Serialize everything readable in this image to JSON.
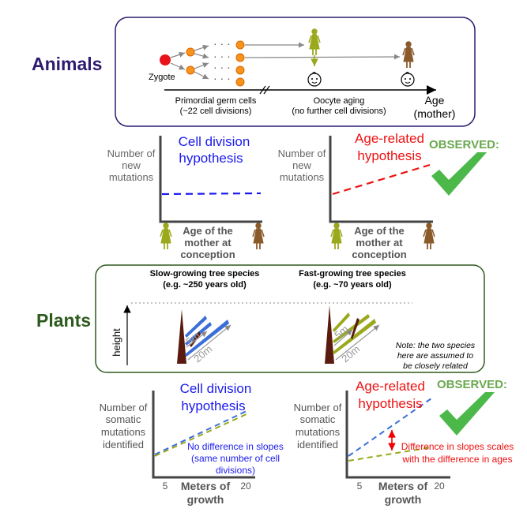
{
  "animals": {
    "heading": "Animals",
    "zygote": "Zygote",
    "pgc_line1": "Primordial germ cells",
    "pgc_line2": "(~22 cell divisions)",
    "oocyte_line1": "Oocyte aging",
    "oocyte_line2": "(no further cell divisions)",
    "age_line1": "Age",
    "age_line2": "(mother)",
    "ylabel": [
      "Number of",
      "new",
      "mutations"
    ],
    "xlabel": [
      "Age of the",
      "mother at",
      "conception"
    ],
    "cell_division": [
      "Cell division",
      "hypothesis"
    ],
    "age_related": [
      "Age-related",
      "hypothesis"
    ],
    "observed": "OBSERVED:"
  },
  "plants": {
    "heading": "Plants",
    "slow_line1": "Slow-growing tree species",
    "slow_line2": "(e.g. ~250 years old)",
    "fast_line1": "Fast-growing tree species",
    "fast_line2": "(e.g. ~70 years old)",
    "height": "height",
    "branch_5m": "5m",
    "branch_20m": "20m",
    "note": [
      "Note: the two species",
      "here are assumed to",
      "be closely related"
    ],
    "ylabel": [
      "Number of",
      "somatic",
      "mutations",
      "identified"
    ],
    "xlabel": [
      "Meters of",
      "growth"
    ],
    "tick_5": "5",
    "tick_20": "20",
    "cell_division": [
      "Cell division",
      "hypothesis"
    ],
    "age_related": [
      "Age-related",
      "hypothesis"
    ],
    "no_difference": [
      "No difference in slopes",
      "(same number of cell",
      "divisions)"
    ],
    "difference": [
      "Difference in slopes scales",
      "with the difference in ages"
    ],
    "observed": "OBSERVED:"
  },
  "colors": {
    "animals_heading": "#2e1a6e",
    "plants_heading": "#2f5a1e",
    "blue_text": "#1a1aee",
    "red_text": "#ee1111",
    "observed_green": "#6aa84f",
    "check_green": "#4cb84a",
    "blue_line": "#3b6fd8",
    "green_line": "#9aa91c",
    "tree_trunk": "#5a1a0e"
  }
}
